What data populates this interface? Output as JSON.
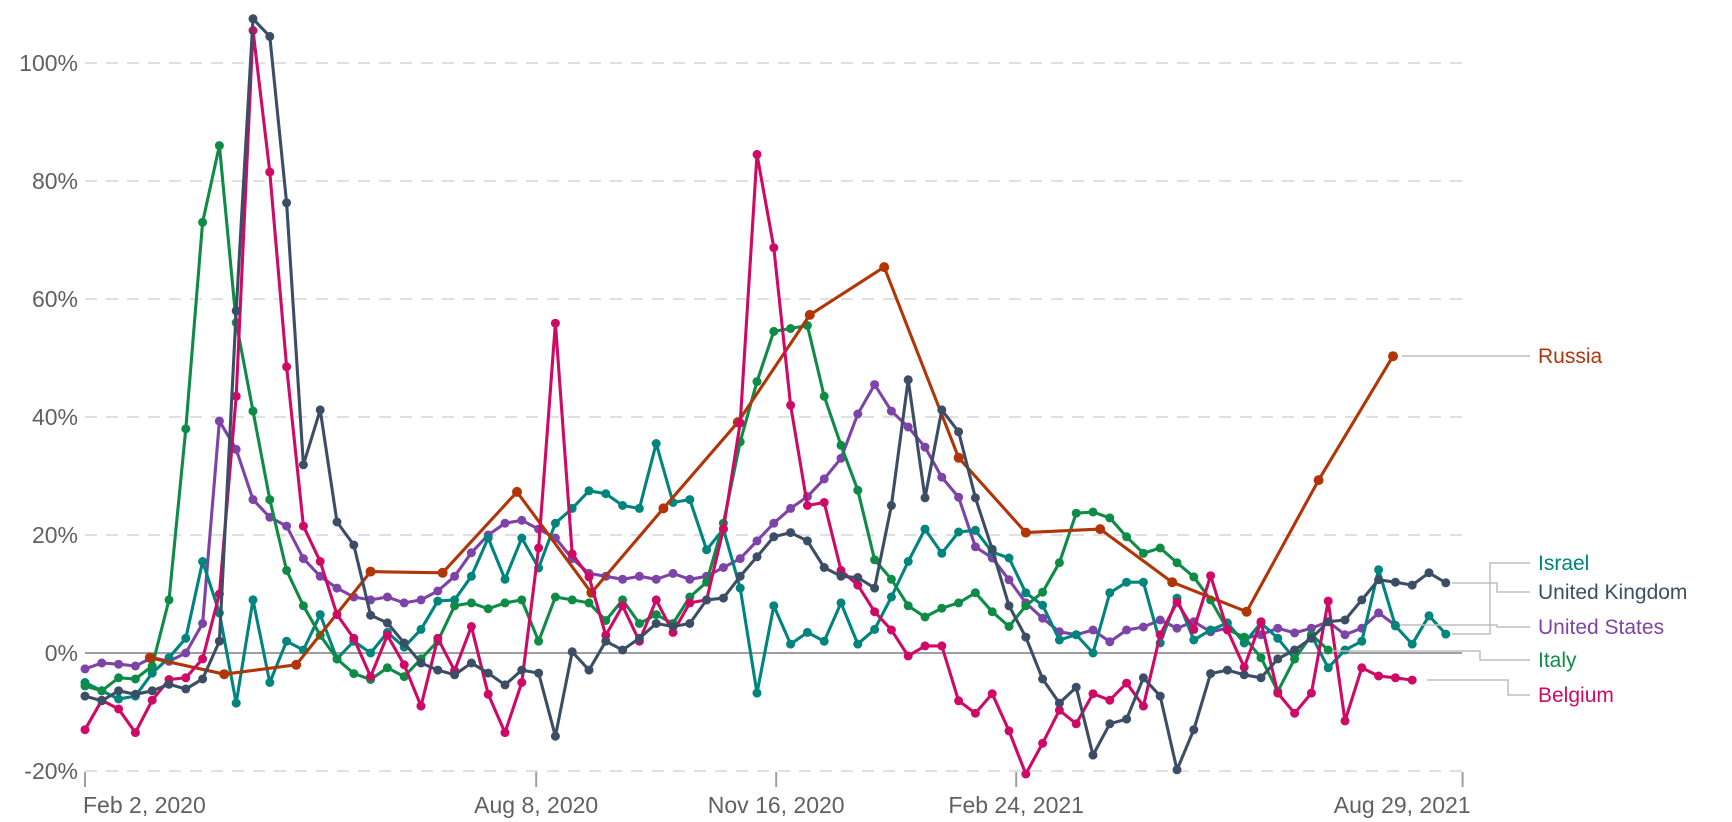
{
  "chart_data": {
    "type": "line",
    "unit": "%",
    "background": "#ffffff",
    "axis": {
      "grid_color": "#d6d6d6",
      "zero_line_color": "#9e9e9e",
      "tick_color": "#9e9e9e",
      "label_color": "#606060",
      "grid_on": true,
      "ylim": [
        -24,
        110
      ],
      "y_ticks": [
        {
          "value": 100,
          "label": "100%"
        },
        {
          "value": 80,
          "label": "80%"
        },
        {
          "value": 60,
          "label": "60%"
        },
        {
          "value": 40,
          "label": "40%"
        },
        {
          "value": 20,
          "label": "20%"
        },
        {
          "value": 0,
          "label": "0%"
        },
        {
          "value": -20,
          "label": "-20%"
        }
      ],
      "x_ticks": [
        {
          "date": "2020-02-02",
          "label": "Feb 2, 2020",
          "align": "start"
        },
        {
          "date": "2020-08-08",
          "label": "Aug 8, 2020",
          "align": "middle"
        },
        {
          "date": "2020-11-16",
          "label": "Nov 16, 2020",
          "align": "middle"
        },
        {
          "date": "2021-02-24",
          "label": "Feb 24, 2021",
          "align": "middle"
        },
        {
          "date": "2021-08-29",
          "label": "Aug 29, 2021",
          "align": "end"
        }
      ]
    },
    "legend_position": "right",
    "legend": [
      {
        "label": "Russia",
        "color": "#B13507"
      },
      {
        "label": "Israel",
        "color": "#00847E"
      },
      {
        "label": "United Kingdom",
        "color": "#3C4E66"
      },
      {
        "label": "United States",
        "color": "#7D43A6"
      },
      {
        "label": "Italy",
        "color": "#0E8C46"
      },
      {
        "label": "Belgium",
        "color": "#CF0A66"
      }
    ],
    "series": [
      {
        "name": "United States",
        "color": "#7D43A6",
        "start": "2020-02-02",
        "step_days": 7,
        "values": [
          -2.7,
          -1.7,
          -1.9,
          -2.2,
          -0.8,
          -1.4,
          0,
          5,
          39.3,
          34.5,
          26,
          23,
          21.5,
          16,
          13,
          11,
          9.5,
          9,
          9.5,
          8.5,
          9,
          10.5,
          13,
          17,
          20,
          22,
          22.5,
          21,
          19.5,
          16,
          13.5,
          13,
          12.5,
          13,
          12.5,
          13.5,
          12.5,
          13,
          14.5,
          16,
          19,
          22,
          24.5,
          26.5,
          29.5,
          33,
          40.5,
          45.5,
          41,
          38.3,
          34.9,
          29.8,
          26.4,
          18,
          16.1,
          12.4,
          8.5,
          5.9,
          3.6,
          3.1,
          3.9,
          1.9,
          3.9,
          4.4,
          5.6,
          4.2,
          5.3,
          3.6,
          4.2,
          2.5,
          3.1,
          4.2,
          3.4,
          4.2,
          5.3,
          3.1,
          4.2,
          6.8,
          4.7
        ]
      },
      {
        "name": "Israel",
        "color": "#00847E",
        "start": "2020-02-02",
        "step_days": 7,
        "values": [
          -5,
          -6.4,
          -7.8,
          -7.3,
          -3.4,
          -0.8,
          2.5,
          15.5,
          6.8,
          -8.5,
          9,
          -5,
          2,
          0.5,
          6.5,
          -1,
          2,
          0,
          3.5,
          1,
          4,
          8.8,
          9,
          13,
          19.5,
          12.5,
          19.5,
          14.4,
          22,
          24.5,
          27.5,
          27,
          25,
          24.5,
          35.5,
          25.5,
          26,
          17.5,
          21,
          11,
          -6.8,
          8,
          1.5,
          3.5,
          2,
          8.5,
          1.5,
          4,
          9.5,
          15.5,
          21,
          16.9,
          20.5,
          20.8,
          17.1,
          16.1,
          10.2,
          8.1,
          2.2,
          3.1,
          0,
          10.2,
          12,
          12,
          1.7,
          9.3,
          2.2,
          3.9,
          5.1,
          1.7,
          5.1,
          2.5,
          -1,
          3,
          -2.5,
          0.5,
          2,
          14.1,
          4.6,
          1.5,
          6.3,
          3.2
        ]
      },
      {
        "name": "Italy",
        "color": "#0E8C46",
        "start": "2020-02-02",
        "step_days": 7,
        "values": [
          -5.6,
          -6.4,
          -4.2,
          -4.4,
          -2.2,
          9,
          38,
          73,
          86,
          56,
          41,
          26,
          14,
          8,
          3,
          -1,
          -3.5,
          -4.5,
          -2.5,
          -4,
          -1,
          2,
          8,
          8.5,
          7.5,
          8.5,
          9,
          2,
          9.5,
          9,
          8.5,
          5.5,
          9,
          5,
          6.5,
          5,
          9.5,
          12,
          22,
          35.8,
          46,
          54.5,
          55,
          55.5,
          43.5,
          35.2,
          27.6,
          15.8,
          12.5,
          8,
          6.1,
          7.6,
          8.5,
          10.2,
          7,
          4.5,
          8,
          10.3,
          15.3,
          23.7,
          23.9,
          22.9,
          19.7,
          16.9,
          17.8,
          15.3,
          12.9,
          9,
          4,
          2.7,
          -0.8,
          -6.5,
          -1,
          3.1,
          0.5
        ]
      },
      {
        "name": "Russia",
        "color": "#B13507",
        "dates": [
          "2020-02-29",
          "2020-03-31",
          "2020-04-30",
          "2020-05-31",
          "2020-06-30",
          "2020-07-31",
          "2020-08-31",
          "2020-09-30",
          "2020-10-31",
          "2020-11-30",
          "2020-12-31",
          "2021-01-31",
          "2021-02-28",
          "2021-03-31",
          "2021-04-30",
          "2021-05-31",
          "2021-06-30",
          "2021-07-31"
        ],
        "values": [
          -0.8,
          -3.6,
          -2,
          13.8,
          13.6,
          27.3,
          10.2,
          24.5,
          39.1,
          57.3,
          65.4,
          33.1,
          20.4,
          21,
          12,
          7,
          29.3,
          50.3
        ]
      },
      {
        "name": "Belgium",
        "color": "#CF0A66",
        "start": "2020-02-02",
        "step_days": 7,
        "values": [
          -13,
          -8,
          -9.5,
          -13.5,
          -8,
          -4.5,
          -4.2,
          -1,
          10,
          43.5,
          105.5,
          81.5,
          48.5,
          21.5,
          15.5,
          6.5,
          2.5,
          -4,
          3,
          -2,
          -9,
          2.5,
          -3,
          4.5,
          -7,
          -13.5,
          -5,
          17.8,
          55.9,
          16.8,
          12.9,
          3,
          8,
          2,
          9,
          3.5,
          8.5,
          9,
          21,
          39,
          84.5,
          68.7,
          42,
          25,
          25.5,
          14,
          11.5,
          7,
          3.9,
          -0.5,
          1.2,
          1.2,
          -8.1,
          -10.2,
          -6.9,
          -13.2,
          -20.5,
          -15.3,
          -9.7,
          -12,
          -6.9,
          -8,
          -5.1,
          -9,
          3.1,
          8.6,
          4,
          13.1,
          3.9,
          -2.4,
          5.3,
          -6.8,
          -10.2,
          -6.8,
          8.8,
          -11.5,
          -2.5,
          -3.9,
          -4.2,
          -4.6
        ]
      },
      {
        "name": "United Kingdom",
        "color": "#3C4E66",
        "start": "2020-02-02",
        "step_days": 7,
        "values": [
          -7.3,
          -8.1,
          -6.4,
          -7,
          -6.4,
          -5.3,
          -6.1,
          -4.4,
          2,
          58,
          107.5,
          104.5,
          76.3,
          31.9,
          41.2,
          22.2,
          18.3,
          6.4,
          5.1,
          1.7,
          -1.7,
          -2.9,
          -3.7,
          -1.7,
          -3.4,
          -5.4,
          -2.9,
          -3.4,
          -14.1,
          0.2,
          -2.9,
          2,
          0.5,
          2.5,
          5,
          4.5,
          5,
          9,
          9.3,
          13,
          16.3,
          19.7,
          20.4,
          19,
          14.5,
          13,
          12.8,
          11,
          25,
          46.3,
          26.3,
          41.2,
          37.5,
          26.3,
          17.6,
          8,
          2.7,
          -4.4,
          -8.5,
          -5.8,
          -17.3,
          -12,
          -11.2,
          -4.2,
          -7.3,
          -19.8,
          -13,
          -3.5,
          -2.9,
          -3.7,
          -4.2,
          -1,
          0.5,
          2.5,
          5.3,
          5.6,
          9,
          12.4,
          12,
          11.5,
          13.6,
          11.9
        ]
      }
    ]
  }
}
